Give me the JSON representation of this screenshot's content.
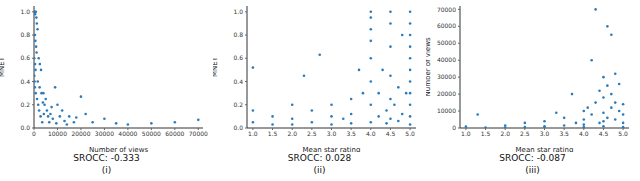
{
  "chart_data": [
    {
      "type": "scatter",
      "x_label": "Number of views",
      "y_label": "MNET",
      "annotation": "SROCC: -0.333",
      "caption": "(i)",
      "color": "#2b7bba",
      "marker": "circle",
      "xlim": [
        0,
        72000
      ],
      "xticks": [
        0,
        10000,
        20000,
        30000,
        40000,
        50000,
        60000,
        70000
      ],
      "ylim": [
        0,
        1.05
      ],
      "yticks": [
        {
          "value": 0,
          "label": "0.0"
        },
        {
          "value": 0.2,
          "label": "0.2"
        },
        {
          "value": 0.4,
          "label": "0.4"
        },
        {
          "value": 0.6,
          "label": "0.6"
        },
        {
          "value": 0.8,
          "label": "0.8"
        },
        {
          "value": 1,
          "label": "1.0"
        }
      ],
      "x": [
        200,
        300,
        500,
        800,
        1000,
        1200,
        1500,
        400,
        600,
        900,
        1100,
        2000,
        2500,
        3000,
        150,
        250,
        350,
        700,
        1300,
        1800,
        2200,
        2800,
        3500,
        4000,
        4500,
        5000,
        5500,
        6000,
        7000,
        8000,
        9000,
        10000,
        11000,
        12000,
        13000,
        15000,
        17000,
        20000,
        22000,
        25000,
        30000,
        35000,
        40000,
        50000,
        60000,
        70000,
        100,
        450,
        650,
        1600,
        2400,
        3200,
        3800,
        4200,
        6500,
        7500,
        9500,
        14000,
        18000
      ],
      "values": [
        1.0,
        1.0,
        0.98,
        1.0,
        0.95,
        0.9,
        0.85,
        0.8,
        0.75,
        0.7,
        0.65,
        0.6,
        0.55,
        0.5,
        0.45,
        0.4,
        0.35,
        0.3,
        0.25,
        0.2,
        0.15,
        0.1,
        0.05,
        0.3,
        0.2,
        0.25,
        0.15,
        0.1,
        0.12,
        0.08,
        0.35,
        0.2,
        0.1,
        0.15,
        0.06,
        0.1,
        0.05,
        0.27,
        0.12,
        0.05,
        0.08,
        0.04,
        0.03,
        0.04,
        0.05,
        0.07,
        0.6,
        0.55,
        0.5,
        0.4,
        0.35,
        0.3,
        0.22,
        0.12,
        0.05,
        0.18,
        0.04,
        0.03,
        0.09
      ]
    },
    {
      "type": "scatter",
      "x_label": "Mean star rating",
      "y_label": "MNET",
      "annotation": "SROCC: 0.028",
      "caption": "(ii)",
      "color": "#2b7bba",
      "marker": "circle",
      "xlim": [
        0.85,
        5.15
      ],
      "xticks": [
        {
          "value": 1,
          "label": "1.0"
        },
        1.5,
        {
          "value": 2,
          "label": "2.0"
        },
        2.5,
        {
          "value": 3,
          "label": "3.0"
        },
        3.5,
        {
          "value": 4,
          "label": "4.0"
        },
        4.5,
        {
          "value": 5,
          "label": "5.0"
        }
      ],
      "ylim": [
        0,
        1.05
      ],
      "yticks": [
        {
          "value": 0,
          "label": "0.0"
        },
        {
          "value": 0.2,
          "label": "0.2"
        },
        {
          "value": 0.4,
          "label": "0.4"
        },
        {
          "value": 0.6,
          "label": "0.6"
        },
        {
          "value": 0.8,
          "label": "0.8"
        },
        {
          "value": 1,
          "label": "1.0"
        }
      ],
      "x": [
        1.0,
        1.0,
        1.0,
        1.5,
        1.5,
        2.0,
        2.0,
        2.0,
        2.3,
        2.5,
        2.5,
        2.7,
        3.0,
        3.0,
        3.0,
        3.3,
        3.5,
        3.5,
        3.5,
        3.7,
        3.8,
        4.0,
        4.0,
        4.0,
        4.0,
        4.0,
        4.0,
        4.0,
        4.0,
        4.2,
        4.2,
        4.3,
        4.4,
        4.4,
        4.5,
        4.5,
        4.5,
        4.5,
        4.5,
        4.5,
        4.6,
        4.7,
        4.7,
        4.8,
        4.8,
        4.9,
        5.0,
        5.0,
        5.0,
        5.0,
        5.0,
        5.0,
        5.0,
        5.0,
        5.0,
        5.0,
        5.0
      ],
      "values": [
        0.52,
        0.15,
        0.05,
        0.1,
        0.03,
        0.2,
        0.08,
        0.03,
        0.45,
        0.15,
        0.05,
        0.63,
        0.2,
        0.1,
        0.03,
        0.08,
        0.25,
        0.12,
        0.04,
        0.5,
        0.3,
        1.0,
        0.95,
        0.85,
        0.75,
        0.6,
        0.4,
        0.2,
        0.05,
        0.3,
        0.1,
        0.5,
        0.15,
        0.04,
        1.0,
        0.9,
        0.7,
        0.45,
        0.25,
        0.08,
        0.2,
        0.35,
        0.06,
        0.8,
        0.12,
        0.3,
        1.0,
        0.9,
        0.8,
        0.7,
        0.6,
        0.5,
        0.4,
        0.3,
        0.2,
        0.1,
        0.03
      ]
    },
    {
      "type": "scatter",
      "x_label": "Mean star rating",
      "y_label": "Number of views",
      "annotation": "SROCC: -0.087",
      "caption": "(iii)",
      "color": "#2b7bba",
      "marker": "circle",
      "xlim": [
        0.85,
        5.15
      ],
      "xticks": [
        {
          "value": 1,
          "label": "1.0"
        },
        1.5,
        {
          "value": 2,
          "label": "2.0"
        },
        2.5,
        {
          "value": 3,
          "label": "3.0"
        },
        3.5,
        {
          "value": 4,
          "label": "4.0"
        },
        4.5,
        {
          "value": 5,
          "label": "5.0"
        }
      ],
      "ylim": [
        0,
        72000
      ],
      "yticks": [
        0,
        10000,
        20000,
        30000,
        40000,
        50000,
        60000,
        70000
      ],
      "x": [
        1.0,
        1.3,
        1.5,
        2.0,
        2.0,
        2.5,
        2.5,
        3.0,
        3.0,
        3.0,
        3.3,
        3.5,
        3.5,
        3.7,
        3.8,
        4.0,
        4.0,
        4.0,
        4.0,
        4.1,
        4.2,
        4.2,
        4.3,
        4.3,
        4.4,
        4.4,
        4.5,
        4.5,
        4.5,
        4.5,
        4.5,
        4.6,
        4.6,
        4.6,
        4.7,
        4.7,
        4.7,
        4.8,
        4.8,
        4.8,
        4.9,
        4.9,
        5.0,
        5.0,
        5.0,
        5.0
      ],
      "values": [
        800,
        8000,
        200,
        1500,
        300,
        3000,
        500,
        4000,
        1000,
        200,
        9000,
        6000,
        1500,
        20000,
        3000,
        10000,
        5000,
        2000,
        500,
        12000,
        40000,
        8000,
        70000,
        15000,
        22000,
        3000,
        30000,
        18000,
        9000,
        4000,
        1000,
        60000,
        25000,
        6000,
        55000,
        20000,
        12000,
        32000,
        15000,
        5000,
        26000,
        10000,
        14000,
        8000,
        3000,
        500
      ]
    }
  ]
}
